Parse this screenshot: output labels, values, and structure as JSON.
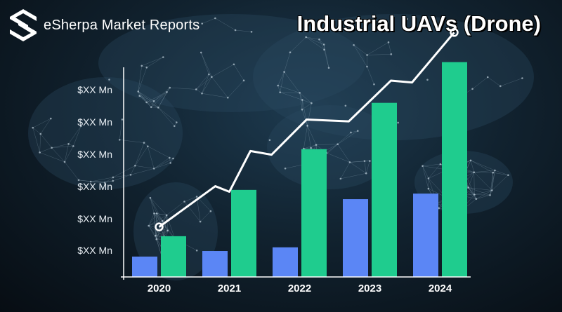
{
  "brand": {
    "name": "eSherpa Market Reports"
  },
  "chart_data": {
    "type": "bar",
    "title": "Industrial UAVs (Drone)",
    "categories": [
      "2020",
      "2021",
      "2022",
      "2023",
      "2024"
    ],
    "y_tick_labels": [
      "$XX Mn",
      "$XX Mn",
      "$XX Mn",
      "$XX Mn",
      "$XX Mn",
      "$XX Mn"
    ],
    "ylim": [
      0,
      6
    ],
    "series": [
      {
        "type": "bar",
        "color": "#5b86f5",
        "values": [
          0.55,
          0.7,
          0.8,
          2.1,
          2.25
        ]
      },
      {
        "type": "bar",
        "color": "#1fcc8e",
        "values": [
          1.1,
          2.35,
          3.45,
          4.7,
          5.8
        ]
      },
      {
        "type": "line",
        "color": "#ffffff",
        "x": [
          0,
          0.8,
          1.0,
          1.3,
          1.6,
          2.1,
          2.7,
          3.3,
          3.6,
          4.2
        ],
        "values": [
          1.35,
          2.45,
          2.3,
          3.4,
          3.3,
          4.25,
          4.2,
          5.3,
          5.25,
          6.6
        ]
      }
    ],
    "grid": false,
    "legend": "none"
  }
}
